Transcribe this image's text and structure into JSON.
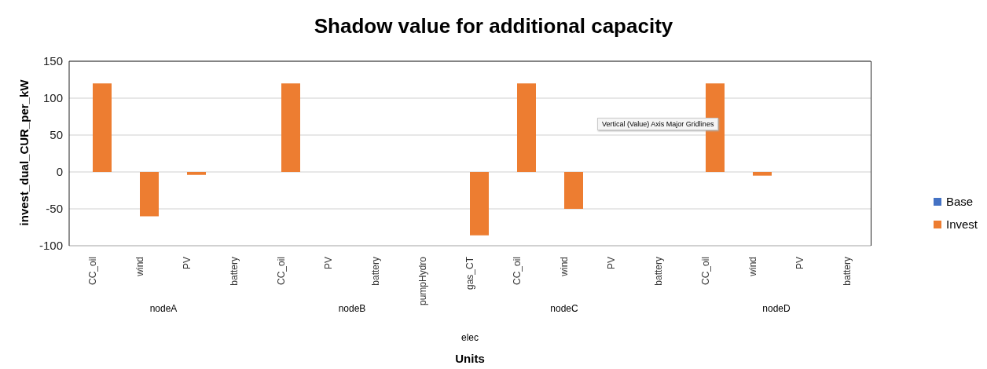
{
  "chart_data": {
    "type": "bar",
    "title": "Shadow value for additional capacity",
    "xlabel": "Units",
    "ylabel": "invest_dual_CUR_per_kW",
    "categories": [
      "CC_oil",
      "wind",
      "PV",
      "battery",
      "CC_oil",
      "PV",
      "battery",
      "pumpHydro",
      "gas_CT",
      "CC_oil",
      "wind",
      "PV",
      "battery",
      "CC_oil",
      "wind",
      "PV",
      "battery"
    ],
    "series": [
      {
        "name": "Base",
        "color": "#4472c4",
        "values": [
          null,
          null,
          null,
          null,
          null,
          null,
          null,
          null,
          null,
          null,
          null,
          null,
          null,
          null,
          null,
          null,
          null
        ]
      },
      {
        "name": "Invest",
        "color": "#ed7d31",
        "values": [
          120,
          -60,
          -4,
          0,
          120,
          0,
          0,
          0,
          -86,
          120,
          -50,
          0,
          0,
          120,
          -5,
          0,
          0
        ]
      }
    ],
    "ylim": [
      -100,
      150
    ],
    "yticks": [
      -100,
      -50,
      0,
      50,
      100,
      150
    ],
    "grid": "y",
    "legend": "right",
    "annotations": [
      "nodeA",
      "nodeB",
      "nodeC",
      "nodeD",
      "elec",
      "Vertical (Value) Axis Major Gridlines"
    ]
  }
}
